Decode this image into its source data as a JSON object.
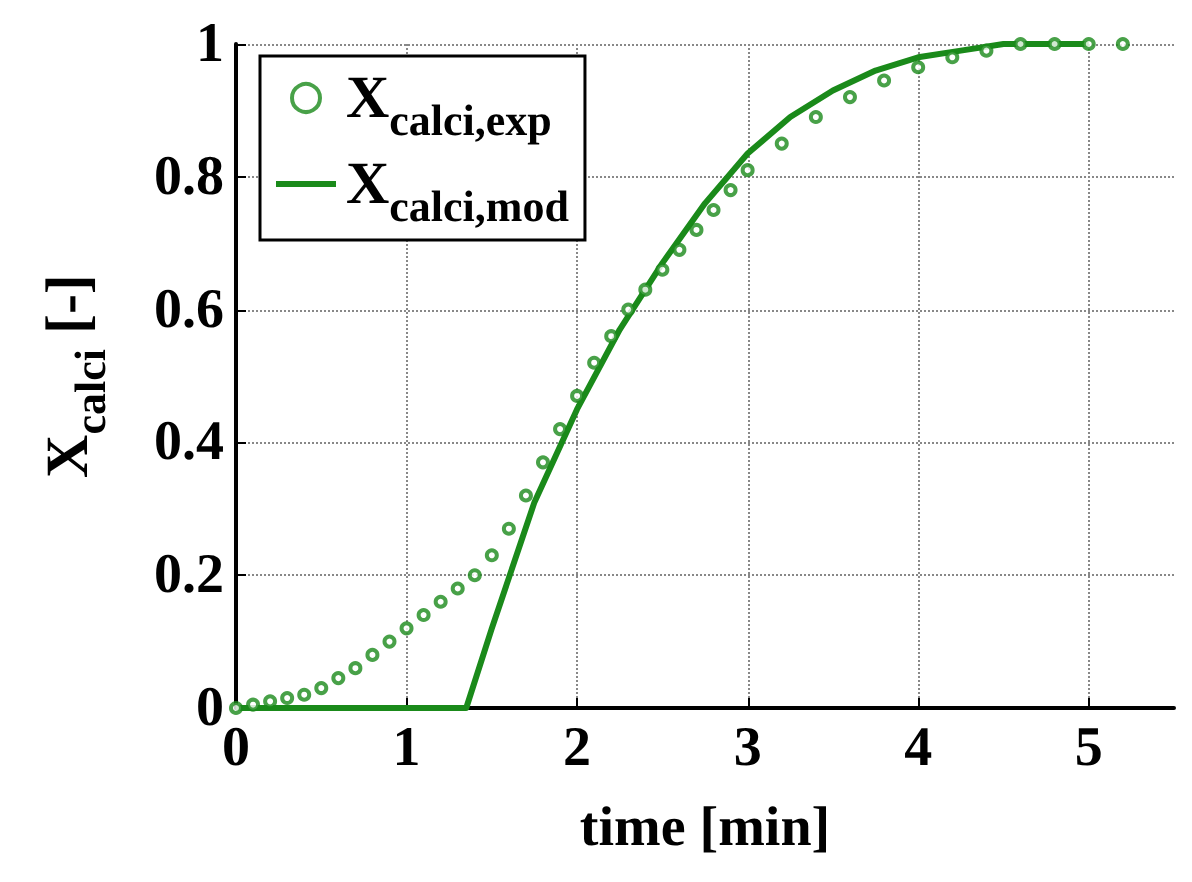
{
  "chart_data": {
    "type": "line",
    "xlabel": "time [min]",
    "ylabel": "X$_{calci}$ [-]",
    "xlim": [
      0,
      5.5
    ],
    "xticks": [
      0,
      1,
      2,
      3,
      4,
      5
    ],
    "ylim": [
      0,
      1
    ],
    "yticks": [
      0,
      0.2,
      0.4,
      0.6,
      0.8,
      1
    ],
    "grid": true,
    "legend": "top left",
    "series": [
      {
        "name": "X$_{calci,exp}$",
        "type": "scatter",
        "marker": "circle",
        "color": "#1a8a1a",
        "x": [
          0,
          0.1,
          0.2,
          0.3,
          0.4,
          0.5,
          0.6,
          0.7,
          0.8,
          0.9,
          1.0,
          1.1,
          1.2,
          1.3,
          1.4,
          1.5,
          1.6,
          1.7,
          1.8,
          1.9,
          2.0,
          2.1,
          2.2,
          2.3,
          2.4,
          2.5,
          2.6,
          2.7,
          2.8,
          2.9,
          3.0,
          3.2,
          3.4,
          3.6,
          3.8,
          4.0,
          4.2,
          4.4,
          4.6,
          4.8,
          5.0,
          5.2
        ],
        "values": [
          0,
          0.005,
          0.01,
          0.015,
          0.02,
          0.03,
          0.045,
          0.06,
          0.08,
          0.1,
          0.12,
          0.14,
          0.16,
          0.18,
          0.2,
          0.23,
          0.27,
          0.32,
          0.37,
          0.42,
          0.47,
          0.52,
          0.56,
          0.6,
          0.63,
          0.66,
          0.69,
          0.72,
          0.75,
          0.78,
          0.81,
          0.85,
          0.89,
          0.92,
          0.945,
          0.965,
          0.98,
          0.99,
          1,
          1,
          1,
          1
        ]
      },
      {
        "name": "X$_{calci,mod}$",
        "marker": "none",
        "color": "#1a8a1a",
        "x": [
          0,
          1.35,
          1.5,
          1.75,
          2.0,
          2.25,
          2.5,
          2.75,
          3.0,
          3.25,
          3.5,
          3.75,
          4.0,
          4.25,
          4.5,
          4.75,
          5.0
        ],
        "values": [
          0,
          0,
          0.12,
          0.31,
          0.45,
          0.57,
          0.67,
          0.76,
          0.835,
          0.89,
          0.93,
          0.96,
          0.98,
          0.99,
          1,
          1,
          1
        ]
      }
    ]
  }
}
